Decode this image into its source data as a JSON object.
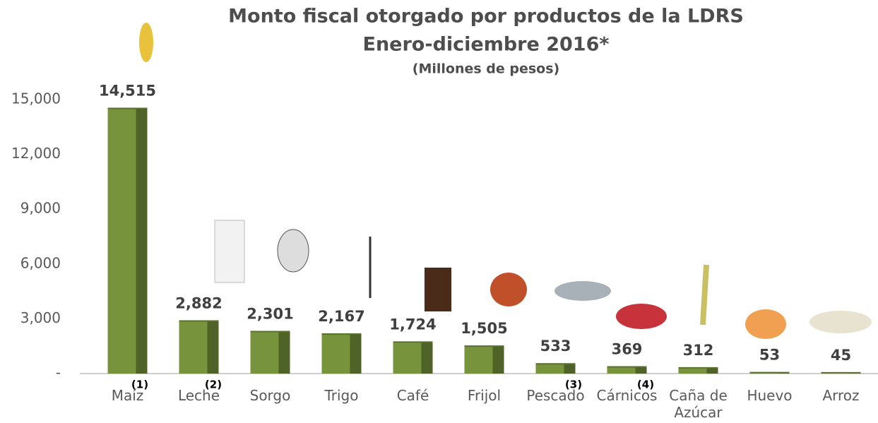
{
  "chart_data": {
    "type": "bar",
    "title": "Monto fiscal otorgado por productos de la LDRS",
    "subtitle": "Enero-diciembre 2016*",
    "unit_label": "(Millones de pesos)",
    "categories": [
      "Maíz",
      "Leche",
      "Sorgo",
      "Trigo",
      "Café",
      "Frijol",
      "Pescado",
      "Cárnicos",
      "Caña de Azúcar",
      "Huevo",
      "Arroz"
    ],
    "values": [
      14515,
      2882,
      2301,
      2167,
      1724,
      1505,
      533,
      369,
      312,
      53,
      45
    ],
    "value_labels": [
      "14,515",
      "2,882",
      "2,301",
      "2,167",
      "1,724",
      "1,505",
      "533",
      "369",
      "312",
      "53",
      "45"
    ],
    "color": "#77933c",
    "side_color": "#4f6228",
    "ylim": [
      0,
      15000
    ],
    "yticks": [
      {
        "value": 0,
        "label": "-"
      },
      {
        "value": 3000,
        "label": "3,000"
      },
      {
        "value": 6000,
        "label": "6,000"
      },
      {
        "value": 9000,
        "label": "9,000"
      },
      {
        "value": 12000,
        "label": "12,000"
      },
      {
        "value": 15000,
        "label": "15,000"
      }
    ],
    "annotations": [
      "(1)",
      "(2)",
      "(3)",
      "(4)"
    ],
    "grid": false
  }
}
